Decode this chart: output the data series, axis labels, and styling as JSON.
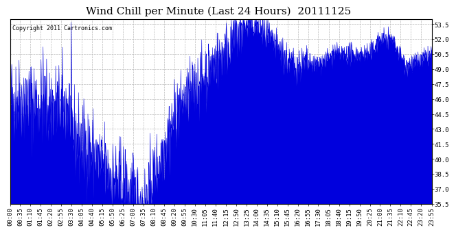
{
  "title": "Wind Chill per Minute (Last 24 Hours)  20111125",
  "copyright": "Copyright 2011 Cartronics.com",
  "ylim": [
    35.5,
    54.0
  ],
  "yticks": [
    35.5,
    37.0,
    38.5,
    40.0,
    41.5,
    43.0,
    44.5,
    46.0,
    47.5,
    49.0,
    50.5,
    52.0,
    53.5
  ],
  "line_color": "#0000dd",
  "bg_color": "#ffffff",
  "grid_color": "#bbbbbb",
  "title_fontsize": 11,
  "tick_fontsize": 6.5,
  "x_tick_labels": [
    "00:00",
    "00:35",
    "01:10",
    "01:45",
    "02:20",
    "02:55",
    "03:30",
    "04:05",
    "04:40",
    "05:15",
    "05:50",
    "06:25",
    "07:00",
    "07:35",
    "08:10",
    "08:45",
    "09:20",
    "09:55",
    "10:30",
    "11:05",
    "11:40",
    "12:15",
    "12:50",
    "13:25",
    "14:00",
    "14:35",
    "15:10",
    "15:45",
    "16:20",
    "16:55",
    "17:30",
    "18:05",
    "18:40",
    "19:15",
    "19:50",
    "20:25",
    "21:00",
    "21:35",
    "22:10",
    "22:45",
    "23:20",
    "23:55"
  ],
  "num_points": 1440,
  "seed": 42
}
